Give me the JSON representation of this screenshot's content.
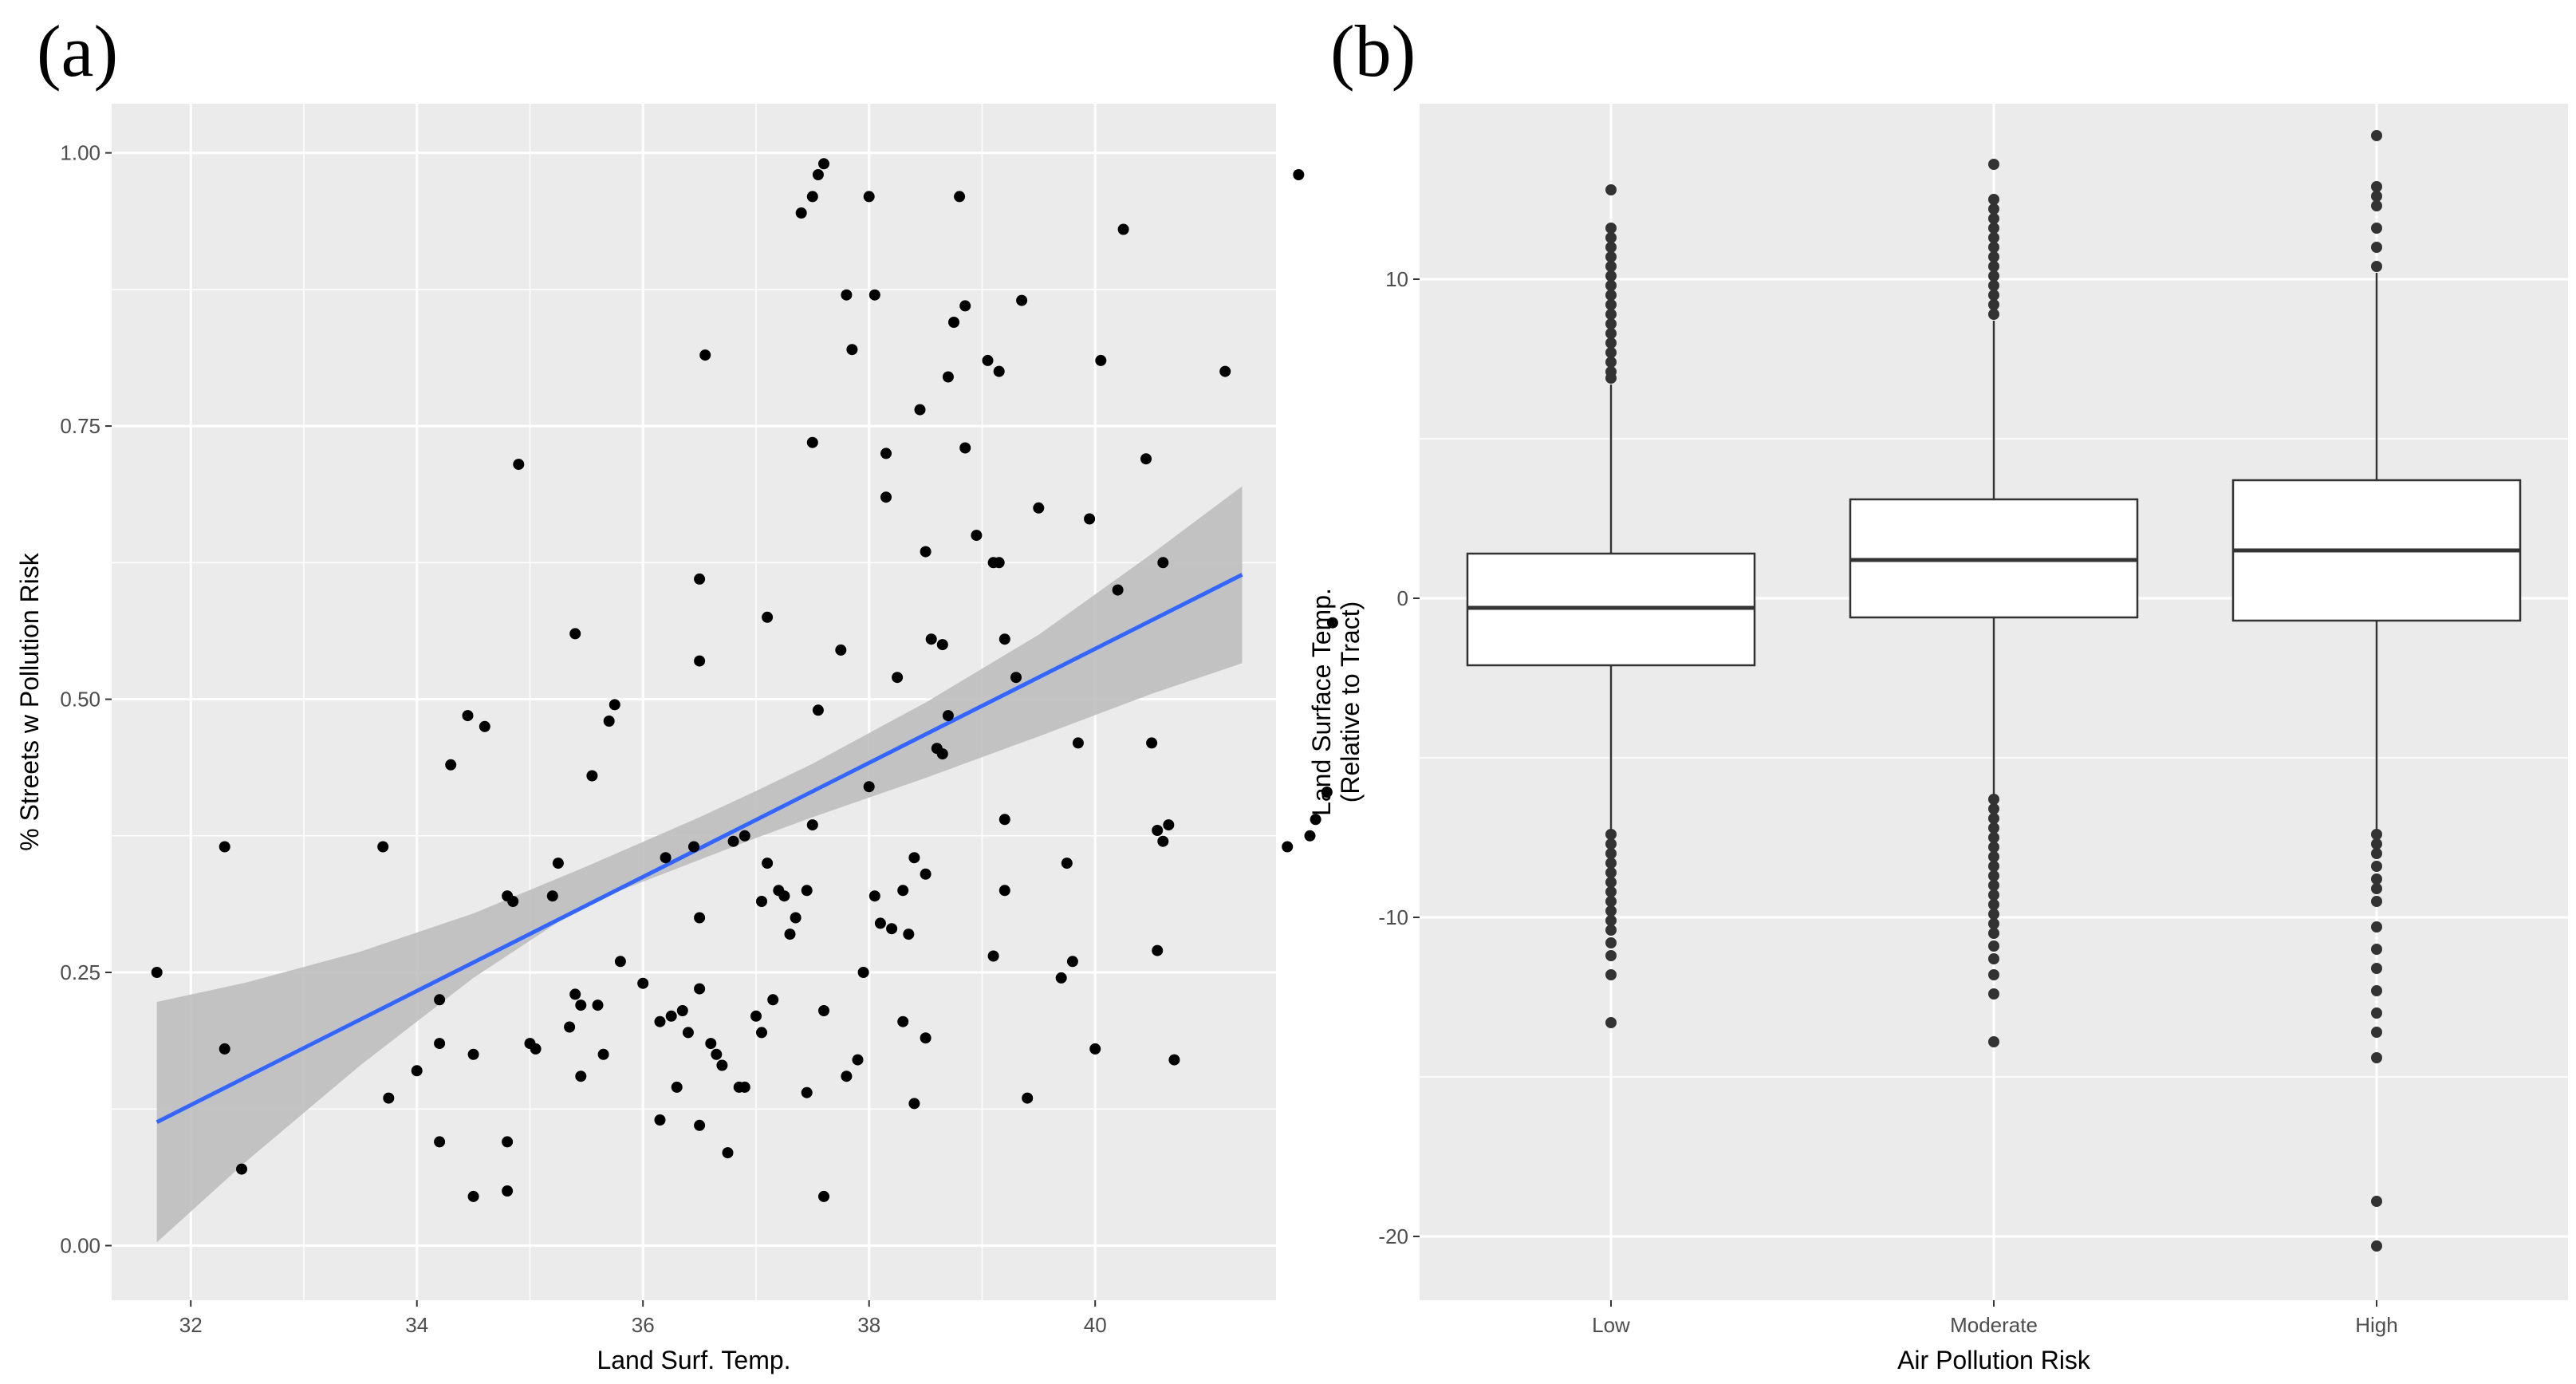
{
  "chart_data": [
    {
      "panel": "(a)",
      "type": "scatter",
      "title": "",
      "xlabel": "Land Surf. Temp.",
      "ylabel": "% Streets w Pollution Risk",
      "xlim": [
        31.3,
        41.6
      ],
      "ylim": [
        -0.05,
        1.045
      ],
      "x_ticks": [
        32,
        34,
        36,
        38,
        40
      ],
      "x_tick_labels": [
        "32",
        "34",
        "36",
        "38",
        "40"
      ],
      "y_ticks": [
        0,
        0.25,
        0.5,
        0.75,
        1.0
      ],
      "y_tick_labels": [
        "0.00",
        "0.25",
        "0.50",
        "0.75",
        "1.00"
      ],
      "colors": {
        "panel_bg": "#ebebeb",
        "grid": "#ffffff",
        "points": "#000000",
        "fit_line": "#3366ff",
        "ribbon": "#bebebe"
      },
      "points": [
        [
          31.7,
          0.25
        ],
        [
          32.3,
          0.365
        ],
        [
          32.3,
          0.18
        ],
        [
          32.45,
          0.07
        ],
        [
          33.7,
          0.365
        ],
        [
          33.75,
          0.135
        ],
        [
          34.0,
          0.16
        ],
        [
          34.2,
          0.225
        ],
        [
          34.2,
          0.185
        ],
        [
          34.2,
          0.095
        ],
        [
          34.3,
          0.44
        ],
        [
          34.45,
          0.485
        ],
        [
          34.5,
          0.175
        ],
        [
          34.5,
          0.045
        ],
        [
          34.6,
          0.475
        ],
        [
          34.8,
          0.32
        ],
        [
          34.8,
          0.095
        ],
        [
          34.8,
          0.05
        ],
        [
          34.85,
          0.315
        ],
        [
          34.9,
          0.715
        ],
        [
          35.0,
          0.185
        ],
        [
          35.05,
          0.18
        ],
        [
          35.2,
          0.32
        ],
        [
          35.25,
          0.35
        ],
        [
          35.35,
          0.2
        ],
        [
          35.4,
          0.23
        ],
        [
          35.4,
          0.56
        ],
        [
          35.45,
          0.22
        ],
        [
          35.45,
          0.155
        ],
        [
          35.55,
          0.43
        ],
        [
          35.6,
          0.22
        ],
        [
          35.65,
          0.175
        ],
        [
          35.7,
          0.48
        ],
        [
          35.75,
          0.495
        ],
        [
          35.8,
          0.26
        ],
        [
          36.0,
          0.24
        ],
        [
          36.15,
          0.205
        ],
        [
          36.15,
          0.115
        ],
        [
          36.2,
          0.355
        ],
        [
          36.25,
          0.21
        ],
        [
          36.3,
          0.145
        ],
        [
          36.35,
          0.215
        ],
        [
          36.4,
          0.195
        ],
        [
          36.45,
          0.365
        ],
        [
          36.5,
          0.235
        ],
        [
          36.5,
          0.3
        ],
        [
          36.5,
          0.61
        ],
        [
          36.5,
          0.535
        ],
        [
          36.5,
          0.11
        ],
        [
          36.55,
          0.815
        ],
        [
          36.6,
          0.185
        ],
        [
          36.65,
          0.175
        ],
        [
          36.7,
          0.165
        ],
        [
          36.75,
          0.085
        ],
        [
          36.8,
          0.37
        ],
        [
          36.85,
          0.145
        ],
        [
          36.9,
          0.375
        ],
        [
          36.9,
          0.145
        ],
        [
          37.0,
          0.21
        ],
        [
          37.05,
          0.315
        ],
        [
          37.05,
          0.195
        ],
        [
          37.1,
          0.575
        ],
        [
          37.1,
          0.35
        ],
        [
          37.15,
          0.225
        ],
        [
          37.2,
          0.325
        ],
        [
          37.25,
          0.32
        ],
        [
          37.3,
          0.285
        ],
        [
          37.35,
          0.3
        ],
        [
          37.45,
          0.325
        ],
        [
          37.45,
          0.14
        ],
        [
          37.5,
          0.385
        ],
        [
          37.5,
          0.735
        ],
        [
          37.4,
          0.945
        ],
        [
          37.5,
          0.96
        ],
        [
          37.55,
          0.98
        ],
        [
          37.6,
          0.99
        ],
        [
          37.55,
          0.49
        ],
        [
          37.6,
          0.215
        ],
        [
          37.6,
          0.045
        ],
        [
          37.75,
          0.545
        ],
        [
          37.8,
          0.155
        ],
        [
          37.8,
          0.87
        ],
        [
          37.85,
          0.82
        ],
        [
          37.9,
          0.17
        ],
        [
          37.95,
          0.25
        ],
        [
          38.0,
          0.42
        ],
        [
          38.0,
          0.96
        ],
        [
          38.05,
          0.87
        ],
        [
          38.05,
          0.32
        ],
        [
          38.1,
          0.295
        ],
        [
          38.15,
          0.685
        ],
        [
          38.15,
          0.725
        ],
        [
          38.2,
          0.29
        ],
        [
          38.25,
          0.52
        ],
        [
          38.3,
          0.325
        ],
        [
          38.3,
          0.205
        ],
        [
          38.35,
          0.285
        ],
        [
          38.4,
          0.355
        ],
        [
          38.4,
          0.13
        ],
        [
          38.45,
          0.765
        ],
        [
          38.5,
          0.34
        ],
        [
          38.5,
          0.19
        ],
        [
          38.5,
          0.635
        ],
        [
          38.55,
          0.555
        ],
        [
          38.6,
          0.455
        ],
        [
          38.65,
          0.55
        ],
        [
          38.65,
          0.45
        ],
        [
          38.7,
          0.795
        ],
        [
          38.7,
          0.485
        ],
        [
          38.75,
          0.845
        ],
        [
          38.8,
          0.96
        ],
        [
          38.85,
          0.73
        ],
        [
          38.85,
          0.86
        ],
        [
          38.95,
          0.65
        ],
        [
          39.05,
          0.81
        ],
        [
          39.1,
          0.625
        ],
        [
          39.1,
          0.265
        ],
        [
          39.15,
          0.8
        ],
        [
          39.15,
          0.625
        ],
        [
          39.2,
          0.325
        ],
        [
          39.2,
          0.555
        ],
        [
          39.2,
          0.39
        ],
        [
          39.3,
          0.52
        ],
        [
          39.35,
          0.865
        ],
        [
          39.4,
          0.135
        ],
        [
          39.5,
          0.675
        ],
        [
          39.7,
          0.245
        ],
        [
          39.75,
          0.35
        ],
        [
          39.8,
          0.26
        ],
        [
          39.85,
          0.46
        ],
        [
          39.95,
          0.665
        ],
        [
          40.0,
          0.18
        ],
        [
          40.05,
          0.81
        ],
        [
          40.2,
          0.6
        ],
        [
          40.25,
          0.93
        ],
        [
          40.45,
          0.72
        ],
        [
          40.5,
          0.46
        ],
        [
          40.55,
          0.27
        ],
        [
          40.55,
          0.38
        ],
        [
          40.6,
          0.37
        ],
        [
          40.6,
          0.625
        ],
        [
          40.65,
          0.385
        ],
        [
          40.7,
          0.17
        ],
        [
          41.15,
          0.8
        ],
        [
          41.7,
          0.365
        ],
        [
          41.8,
          0.98
        ],
        [
          41.9,
          0.375
        ],
        [
          41.95,
          0.39
        ],
        [
          42.05,
          0.415
        ],
        [
          42.1,
          0.57
        ]
      ],
      "fit_line": {
        "x": [
          31.7,
          41.3
        ],
        "y": [
          0.113,
          0.614
        ]
      },
      "ribbon": {
        "x": [
          31.7,
          32.5,
          33.5,
          34.5,
          35.5,
          36.5,
          37.0,
          37.5,
          38.5,
          39.5,
          40.5,
          41.3
        ],
        "lower": [
          0.003,
          0.078,
          0.165,
          0.245,
          0.313,
          0.353,
          0.373,
          0.392,
          0.428,
          0.466,
          0.505,
          0.533
        ],
        "upper": [
          0.223,
          0.241,
          0.269,
          0.304,
          0.347,
          0.392,
          0.416,
          0.441,
          0.497,
          0.559,
          0.633,
          0.695
        ]
      }
    },
    {
      "panel": "(b)",
      "type": "box",
      "title": "",
      "xlabel": "Air Pollution Risk",
      "ylabel": [
        "Land Surface Temp.",
        "(Relative to Tract)"
      ],
      "ylim": [
        -22,
        15.5
      ],
      "y_ticks": [
        -20,
        -10,
        0,
        10
      ],
      "y_tick_labels": [
        "-20",
        "-10",
        "0",
        "10"
      ],
      "categories": [
        "Low",
        "Moderate",
        "High"
      ],
      "colors": {
        "panel_bg": "#ebebeb",
        "grid": "#ffffff",
        "box_fill": "#ffffff",
        "box_line": "#333333",
        "outliers": "#333333"
      },
      "series": [
        {
          "name": "Low",
          "whisker_low": -7.3,
          "q1": -2.1,
          "median": -0.3,
          "q3": 1.4,
          "whisker_high": 6.7,
          "outliers": [
            12.8,
            11.6,
            11.3,
            11.0,
            10.7,
            10.4,
            10.1,
            9.8,
            9.5,
            9.2,
            8.9,
            8.6,
            8.3,
            8.0,
            7.7,
            7.4,
            7.1,
            6.9,
            -7.4,
            -7.7,
            -8.0,
            -8.3,
            -8.6,
            -8.9,
            -9.2,
            -9.5,
            -9.8,
            -10.1,
            -10.4,
            -10.8,
            -11.2,
            -11.8,
            -13.3
          ]
        },
        {
          "name": "Moderate",
          "whisker_low": -6.2,
          "q1": -0.6,
          "median": 1.2,
          "q3": 3.1,
          "whisker_high": 8.7,
          "outliers": [
            13.6,
            12.5,
            12.2,
            11.9,
            11.6,
            11.3,
            11.0,
            10.7,
            10.4,
            10.1,
            9.8,
            9.5,
            9.2,
            8.9,
            -6.3,
            -6.6,
            -6.9,
            -7.2,
            -7.5,
            -7.8,
            -8.1,
            -8.4,
            -8.7,
            -9.0,
            -9.3,
            -9.6,
            -9.9,
            -10.2,
            -10.5,
            -10.9,
            -11.3,
            -11.8,
            -12.4,
            -13.9
          ]
        },
        {
          "name": "High",
          "whisker_low": -7.3,
          "q1": -0.7,
          "median": 1.5,
          "q3": 3.7,
          "whisker_high": 10.2,
          "outliers": [
            14.5,
            12.9,
            12.6,
            12.3,
            11.6,
            11.0,
            10.4,
            -7.4,
            -7.7,
            -8.0,
            -8.4,
            -8.8,
            -9.1,
            -9.5,
            -10.3,
            -11.0,
            -11.6,
            -12.3,
            -13.0,
            -13.6,
            -14.4,
            -18.9,
            -20.3
          ]
        }
      ]
    }
  ]
}
